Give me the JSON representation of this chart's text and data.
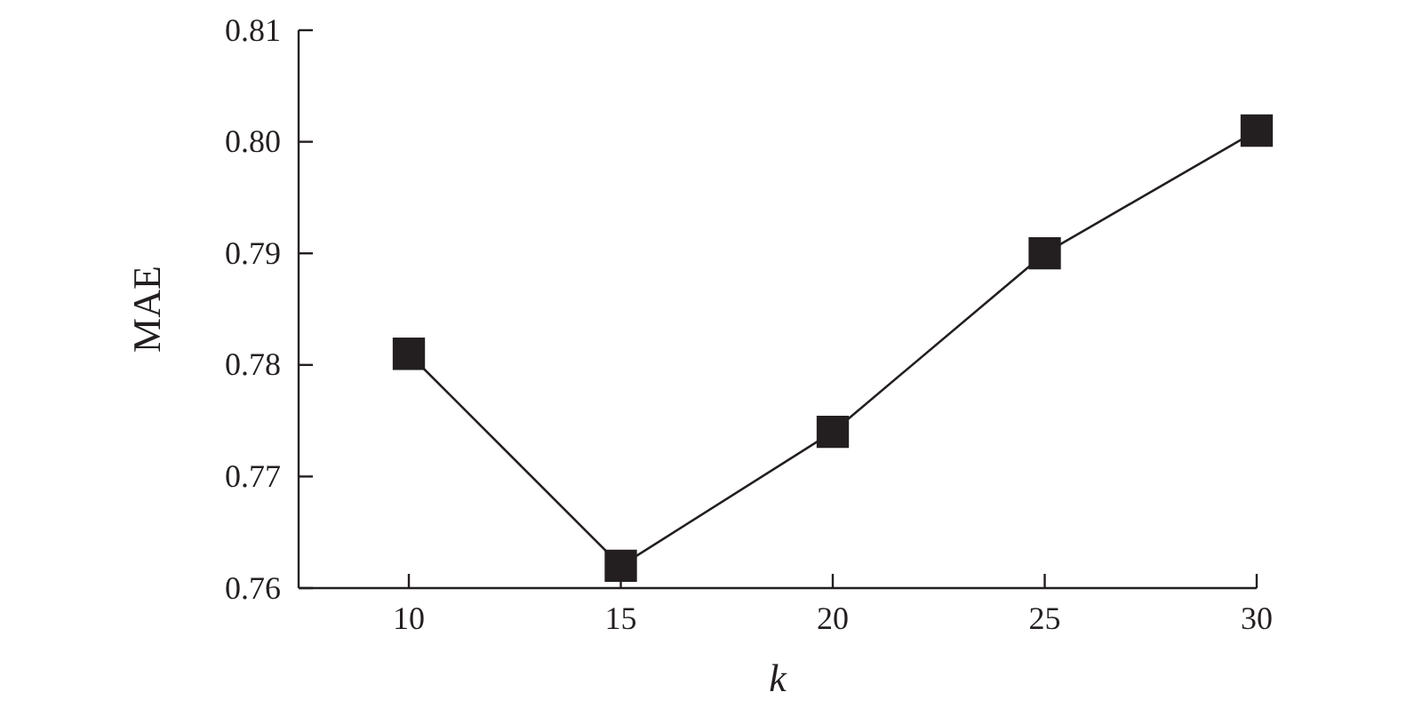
{
  "chart_data": {
    "type": "line",
    "xlabel": "k",
    "ylabel": "MAE",
    "x": [
      10,
      15,
      20,
      25,
      30
    ],
    "series": [
      {
        "color": "#231f20",
        "values": [
          0.781,
          0.762,
          0.774,
          0.79,
          0.801
        ]
      }
    ],
    "xlim": [
      7.4,
      30
    ],
    "xticks": [
      10,
      15,
      20,
      25,
      30
    ],
    "ylim": [
      0.76,
      0.81
    ],
    "yticks": [
      {
        "value": 0.76,
        "label": "0.76"
      },
      {
        "value": 0.77,
        "label": "0.77"
      },
      {
        "value": 0.78,
        "label": "0.78"
      },
      {
        "value": 0.79,
        "label": "0.79"
      },
      {
        "value": 0.8,
        "label": "0.80"
      },
      {
        "value": 0.81,
        "label": "0.81"
      }
    ],
    "marker": "square",
    "line_style": "solid"
  }
}
